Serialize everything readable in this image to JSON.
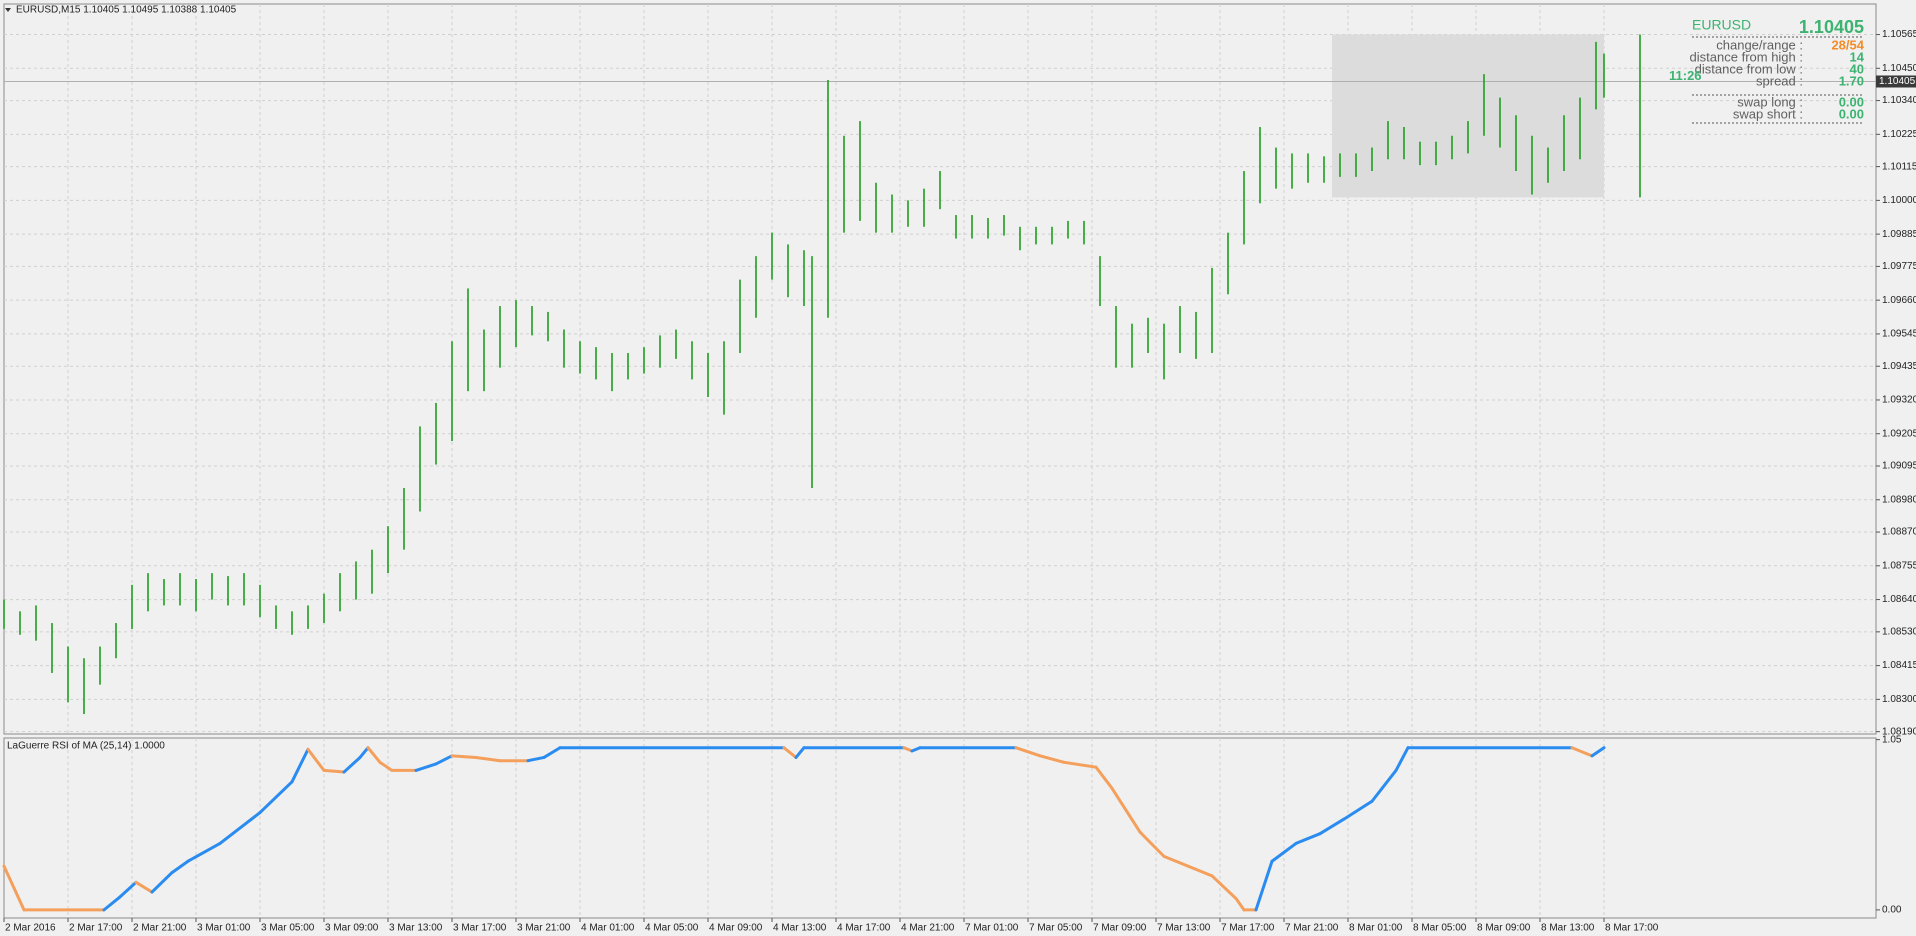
{
  "chart_data": [
    {
      "type": "range-bar",
      "title": "EURUSD,M15  1.10405 1.10495 1.10388 1.10405",
      "x": [
        0,
        4,
        8,
        12,
        16,
        20,
        24,
        28,
        32,
        36,
        40,
        44,
        48,
        52,
        56,
        60,
        64,
        68,
        72,
        76,
        80,
        84,
        88,
        92,
        96,
        100,
        104,
        108,
        112,
        116,
        120,
        124,
        128,
        132,
        136,
        140,
        144,
        148,
        152,
        156,
        160,
        164,
        168,
        172,
        176,
        180,
        184,
        188,
        192,
        196,
        200,
        202,
        206,
        210,
        214,
        218,
        222,
        226,
        230,
        234,
        238,
        242,
        246,
        250,
        254,
        258,
        262,
        266,
        270,
        274,
        278,
        282,
        286,
        290,
        294,
        298,
        302,
        306,
        310,
        314,
        318,
        322,
        326,
        330,
        334,
        338,
        342,
        346,
        350,
        354,
        358,
        362,
        366,
        370,
        374,
        378,
        382,
        386,
        390,
        394,
        398,
        400,
        409
      ],
      "high": [
        1.0864,
        1.086,
        1.0862,
        1.0856,
        1.0848,
        1.0844,
        1.0848,
        1.0856,
        1.0869,
        1.0873,
        1.0871,
        1.0873,
        1.0871,
        1.0873,
        1.0872,
        1.0873,
        1.0869,
        1.0862,
        1.086,
        1.0862,
        1.0866,
        1.0873,
        1.0877,
        1.0881,
        1.0889,
        1.0902,
        1.0923,
        1.0931,
        1.0952,
        1.097,
        1.0956,
        1.0964,
        1.0966,
        1.0964,
        1.0962,
        1.0956,
        1.0952,
        1.095,
        1.0948,
        1.0948,
        1.095,
        1.0954,
        1.0956,
        1.0952,
        1.0948,
        1.0952,
        1.0973,
        1.0981,
        1.0989,
        1.0985,
        1.0983,
        1.0981,
        1.1041,
        1.1022,
        1.1027,
        1.1006,
        1.1002,
        1.1,
        1.1004,
        1.101,
        1.0995,
        1.0995,
        1.0994,
        1.0995,
        1.0991,
        1.0991,
        1.0991,
        1.0993,
        1.0993,
        1.0981,
        1.0964,
        1.0958,
        1.096,
        1.0958,
        1.0964,
        1.0962,
        1.0977,
        1.0989,
        1.101,
        1.1025,
        1.1018,
        1.1016,
        1.1016,
        1.1015,
        1.1016,
        1.1016,
        1.1018,
        1.1027,
        1.1025,
        1.102,
        1.102,
        1.1022,
        1.1027,
        1.1043,
        1.1035,
        1.1029,
        1.1022,
        1.1018,
        1.1029,
        1.1035,
        1.1054,
        1.105,
        1.10565
      ],
      "low": [
        1.0854,
        1.0852,
        1.085,
        1.0839,
        1.0829,
        1.0825,
        1.0835,
        1.0844,
        1.0854,
        1.086,
        1.0862,
        1.0862,
        1.086,
        1.0864,
        1.0862,
        1.0862,
        1.0858,
        1.0854,
        1.0852,
        1.0854,
        1.0856,
        1.086,
        1.0864,
        1.0866,
        1.0873,
        1.0881,
        1.0894,
        1.091,
        1.0918,
        1.0935,
        1.0935,
        1.0943,
        1.095,
        1.0954,
        1.0952,
        1.0943,
        1.0941,
        1.0939,
        1.0935,
        1.0939,
        1.0941,
        1.0943,
        1.0946,
        1.0939,
        1.0933,
        1.0927,
        1.0948,
        1.096,
        1.0973,
        1.0967,
        1.0964,
        1.0902,
        1.096,
        1.0989,
        1.0993,
        1.0989,
        1.0989,
        1.0991,
        1.0991,
        1.0997,
        1.0987,
        1.0987,
        1.0987,
        1.0988,
        1.0983,
        1.0985,
        1.0985,
        1.0987,
        1.0985,
        1.0964,
        1.0943,
        1.0943,
        1.0948,
        1.0939,
        1.0948,
        1.0946,
        1.0948,
        1.0968,
        1.0985,
        1.0999,
        1.1004,
        1.1004,
        1.1006,
        1.1006,
        1.1008,
        1.1008,
        1.101,
        1.1014,
        1.1014,
        1.1012,
        1.1012,
        1.1014,
        1.1016,
        1.1022,
        1.1018,
        1.101,
        1.1002,
        1.1006,
        1.101,
        1.1014,
        1.1031,
        1.1035,
        1.1001
      ],
      "color": "#1f9e1f",
      "xlim": [
        0,
        468
      ],
      "xticks": [
        {
          "value": 0,
          "label": "2 Mar 2016"
        },
        {
          "value": 16,
          "label": "2 Mar 17:00"
        },
        {
          "value": 32,
          "label": "2 Mar 21:00"
        },
        {
          "value": 48,
          "label": "3 Mar 01:00"
        },
        {
          "value": 64,
          "label": "3 Mar 05:00"
        },
        {
          "value": 80,
          "label": "3 Mar 09:00"
        },
        {
          "value": 96,
          "label": "3 Mar 13:00"
        },
        {
          "value": 112,
          "label": "3 Mar 17:00"
        },
        {
          "value": 128,
          "label": "3 Mar 21:00"
        },
        {
          "value": 144,
          "label": "4 Mar 01:00"
        },
        {
          "value": 160,
          "label": "4 Mar 05:00"
        },
        {
          "value": 176,
          "label": "4 Mar 09:00"
        },
        {
          "value": 192,
          "label": "4 Mar 13:00"
        },
        {
          "value": 208,
          "label": "4 Mar 17:00"
        },
        {
          "value": 224,
          "label": "4 Mar 21:00"
        },
        {
          "value": 240,
          "label": "7 Mar 01:00"
        },
        {
          "value": 256,
          "label": "7 Mar 05:00"
        },
        {
          "value": 272,
          "label": "7 Mar 09:00"
        },
        {
          "value": 288,
          "label": "7 Mar 13:00"
        },
        {
          "value": 304,
          "label": "7 Mar 17:00"
        },
        {
          "value": 320,
          "label": "7 Mar 21:00"
        },
        {
          "value": 336,
          "label": "8 Mar 01:00"
        },
        {
          "value": 352,
          "label": "8 Mar 05:00"
        },
        {
          "value": 368,
          "label": "8 Mar 09:00"
        },
        {
          "value": 384,
          "label": "8 Mar 13:00"
        },
        {
          "value": 400,
          "label": "8 Mar 17:00"
        }
      ],
      "ylim": [
        1.08182,
        1.10669
      ],
      "yticks": [
        {
          "value": 1.0819,
          "label": "1.08190"
        },
        {
          "value": 1.083,
          "label": "1.08300"
        },
        {
          "value": 1.08415,
          "label": "1.08415"
        },
        {
          "value": 1.0853,
          "label": "1.08530"
        },
        {
          "value": 1.0864,
          "label": "1.08640"
        },
        {
          "value": 1.08755,
          "label": "1.08755"
        },
        {
          "value": 1.0887,
          "label": "1.08870"
        },
        {
          "value": 1.0898,
          "label": "1.08980"
        },
        {
          "value": 1.09095,
          "label": "1.09095"
        },
        {
          "value": 1.09205,
          "label": "1.09205"
        },
        {
          "value": 1.0932,
          "label": "1.09320"
        },
        {
          "value": 1.09435,
          "label": "1.09435"
        },
        {
          "value": 1.09545,
          "label": "1.09545"
        },
        {
          "value": 1.0966,
          "label": "1.09660"
        },
        {
          "value": 1.09775,
          "label": "1.09775"
        },
        {
          "value": 1.09885,
          "label": "1.09885"
        },
        {
          "value": 1.1,
          "label": "1.10000"
        },
        {
          "value": 1.10115,
          "label": "1.10115"
        },
        {
          "value": 1.10225,
          "label": "1.10225"
        },
        {
          "value": 1.1034,
          "label": "1.10340"
        },
        {
          "value": 1.1045,
          "label": "1.10450"
        },
        {
          "value": 1.10565,
          "label": "1.10565"
        }
      ],
      "grid": true,
      "range_box": {
        "x": [
          332,
          400
        ],
        "y": [
          1.1001,
          1.10565
        ],
        "color": "#dcdcdc"
      },
      "last_price": {
        "value": 1.10405,
        "label": "1.10405"
      },
      "countdown": "11:26"
    },
    {
      "type": "line",
      "title": "LaGuerre RSI of MA (25,14) 1.0000",
      "x": [
        0,
        5,
        25,
        29,
        33,
        37,
        42,
        46,
        54,
        64,
        72,
        76,
        80,
        85,
        89,
        91,
        94,
        97,
        103,
        108,
        112,
        118,
        124,
        131,
        135,
        139,
        195,
        198,
        200,
        225,
        227,
        229,
        253,
        259,
        265,
        273,
        277,
        284,
        290,
        296,
        302,
        308,
        310,
        313,
        317,
        323,
        329,
        335,
        342,
        348,
        351,
        392,
        397,
        400
      ],
      "values": [
        0.27,
        0,
        0,
        0.08,
        0.17,
        0.11,
        0.23,
        0.3,
        0.41,
        0.6,
        0.79,
        0.99,
        0.86,
        0.85,
        0.94,
        1.0,
        0.91,
        0.86,
        0.86,
        0.9,
        0.95,
        0.94,
        0.92,
        0.92,
        0.94,
        1.0,
        1.0,
        0.94,
        1.0,
        1.0,
        0.98,
        1.0,
        1.0,
        0.95,
        0.91,
        0.88,
        0.75,
        0.48,
        0.33,
        0.27,
        0.21,
        0.07,
        0,
        0,
        0.3,
        0.41,
        0.47,
        0.56,
        0.67,
        0.86,
        1.0,
        1.0,
        0.95,
        1.0
      ],
      "up_color": "#2a8cf0",
      "down_color": "#f4a05c",
      "xlim": [
        0,
        468
      ],
      "ylim": [
        -0.05,
        1.06
      ],
      "yticks": [
        {
          "value": 1.05,
          "label": "1.05"
        },
        {
          "value": 0,
          "label": "0.00"
        }
      ],
      "grid": true
    }
  ],
  "info_panel": {
    "symbol": "EURUSD",
    "price": "1.10405",
    "rows": [
      [
        "change/range :",
        "28/54"
      ],
      [
        "distance from high :",
        "14"
      ],
      [
        "distance from low :",
        "40"
      ],
      [
        "spread :",
        "1.70"
      ],
      [
        "swap long :",
        "0.00"
      ],
      [
        "swap short :",
        "0.00"
      ]
    ]
  }
}
